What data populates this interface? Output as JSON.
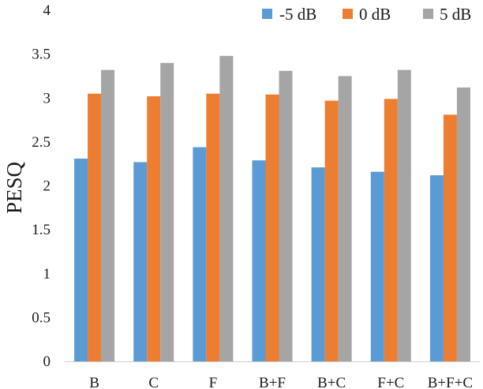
{
  "chart_data": {
    "type": "bar",
    "title": "",
    "xlabel": "",
    "ylabel": "PESQ",
    "ylim": [
      0,
      4
    ],
    "yticks": [
      "0",
      "0.5",
      "1",
      "1.5",
      "2",
      "2.5",
      "3",
      "3.5",
      "4"
    ],
    "grid": false,
    "legend_position": "top-right",
    "categories": [
      "B",
      "C",
      "F",
      "B+F",
      "B+C",
      "F+C",
      "B+F+C"
    ],
    "series": [
      {
        "name": "-5 dB",
        "color": "#5b9bd5",
        "values": [
          2.31,
          2.27,
          2.44,
          2.29,
          2.21,
          2.16,
          2.12
        ]
      },
      {
        "name": "0 dB",
        "color": "#ed7d31",
        "values": [
          3.05,
          3.02,
          3.05,
          3.04,
          2.97,
          2.99,
          2.81
        ]
      },
      {
        "name": "5 dB",
        "color": "#a5a5a5",
        "values": [
          3.32,
          3.4,
          3.48,
          3.31,
          3.25,
          3.32,
          3.12
        ]
      }
    ]
  }
}
